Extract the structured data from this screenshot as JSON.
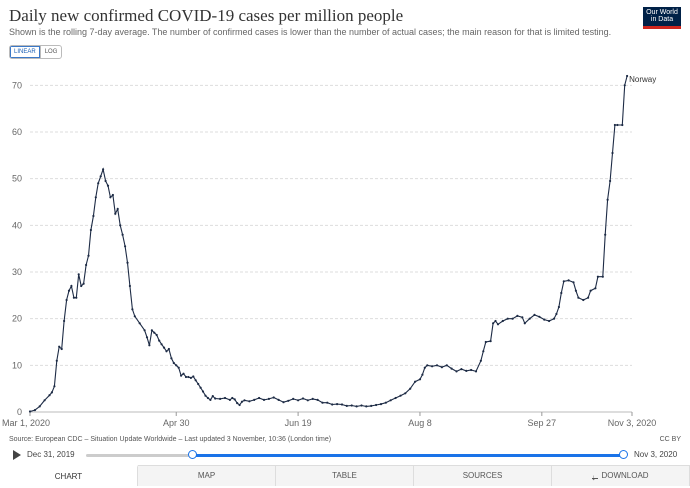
{
  "title": "Daily new confirmed COVID-19 cases per million people",
  "subtitle": "Shown is the rolling 7-day average. The number of confirmed cases is lower than the number of actual cases; the main reason for that is limited testing.",
  "logo": {
    "line1": "Our World",
    "line2": "in Data",
    "bg_color": "#002147",
    "accent_color": "#ce261e"
  },
  "scale_toggle": {
    "linear": "LINEAR",
    "log": "LOG",
    "selected": "linear"
  },
  "source": "Source: European CDC – Situation Update Worldwide – Last updated 3 November, 10:36 (London time)",
  "license": "CC BY",
  "timeline": {
    "start_label": "Dec 31, 2019",
    "end_label": "Nov 3, 2020",
    "play_icon": "play-icon"
  },
  "tabs": [
    {
      "label": "CHART",
      "active": true
    },
    {
      "label": "MAP"
    },
    {
      "label": "TABLE"
    },
    {
      "label": "SOURCES"
    },
    {
      "label": "DOWNLOAD",
      "icon": "download-icon"
    }
  ],
  "chart_data": {
    "type": "line",
    "ylim": [
      0,
      75
    ],
    "y_ticks": [
      0,
      10,
      20,
      30,
      40,
      50,
      60,
      70
    ],
    "x_range": [
      "2020-03-01",
      "2020-11-03"
    ],
    "x_ticks": [
      {
        "date": "2020-03-01",
        "label": "Mar 1, 2020"
      },
      {
        "date": "2020-04-30",
        "label": "Apr 30"
      },
      {
        "date": "2020-06-19",
        "label": "Jun 19"
      },
      {
        "date": "2020-08-08",
        "label": "Aug 8"
      },
      {
        "date": "2020-09-27",
        "label": "Sep 27"
      },
      {
        "date": "2020-11-03",
        "label": "Nov 3, 2020"
      }
    ],
    "grid": "horizontal",
    "line_color": "#1d2b45",
    "series": [
      {
        "name": "Norway",
        "points": [
          [
            "2020-03-01",
            0.1
          ],
          [
            "2020-03-03",
            0.4
          ],
          [
            "2020-03-05",
            1.2
          ],
          [
            "2020-03-07",
            2.5
          ],
          [
            "2020-03-09",
            3.6
          ],
          [
            "2020-03-10",
            4.2
          ],
          [
            "2020-03-11",
            5.5
          ],
          [
            "2020-03-12",
            11
          ],
          [
            "2020-03-13",
            14
          ],
          [
            "2020-03-14",
            13.5
          ],
          [
            "2020-03-15",
            19.5
          ],
          [
            "2020-03-16",
            24
          ],
          [
            "2020-03-17",
            26
          ],
          [
            "2020-03-18",
            27
          ],
          [
            "2020-03-19",
            24.5
          ],
          [
            "2020-03-20",
            24.5
          ],
          [
            "2020-03-21",
            29.5
          ],
          [
            "2020-03-22",
            27
          ],
          [
            "2020-03-23",
            27.5
          ],
          [
            "2020-03-24",
            31.5
          ],
          [
            "2020-03-25",
            33.5
          ],
          [
            "2020-03-26",
            39
          ],
          [
            "2020-03-27",
            42
          ],
          [
            "2020-03-28",
            46
          ],
          [
            "2020-03-29",
            49
          ],
          [
            "2020-03-30",
            50.5
          ],
          [
            "2020-03-31",
            52
          ],
          [
            "2020-04-01",
            49.5
          ],
          [
            "2020-04-02",
            48.5
          ],
          [
            "2020-04-03",
            46
          ],
          [
            "2020-04-04",
            46.5
          ],
          [
            "2020-04-05",
            42.5
          ],
          [
            "2020-04-06",
            43.5
          ],
          [
            "2020-04-07",
            40
          ],
          [
            "2020-04-08",
            38
          ],
          [
            "2020-04-09",
            35.5
          ],
          [
            "2020-04-10",
            32
          ],
          [
            "2020-04-11",
            27
          ],
          [
            "2020-04-12",
            22
          ],
          [
            "2020-04-13",
            20.5
          ],
          [
            "2020-04-15",
            19
          ],
          [
            "2020-04-17",
            17.5
          ],
          [
            "2020-04-18",
            16
          ],
          [
            "2020-04-19",
            14.3
          ],
          [
            "2020-04-20",
            17.5
          ],
          [
            "2020-04-21",
            17
          ],
          [
            "2020-04-22",
            16.5
          ],
          [
            "2020-04-23",
            15.3
          ],
          [
            "2020-04-24",
            14.5
          ],
          [
            "2020-04-25",
            13.8
          ],
          [
            "2020-04-26",
            13
          ],
          [
            "2020-04-27",
            13.5
          ],
          [
            "2020-04-28",
            11.5
          ],
          [
            "2020-04-29",
            10.5
          ],
          [
            "2020-04-30",
            10
          ],
          [
            "2020-05-01",
            9.5
          ],
          [
            "2020-05-02",
            7.8
          ],
          [
            "2020-05-03",
            8.2
          ],
          [
            "2020-05-04",
            7.5
          ],
          [
            "2020-05-05",
            7.5
          ],
          [
            "2020-05-06",
            7.3
          ],
          [
            "2020-05-07",
            7.6
          ],
          [
            "2020-05-08",
            6.8
          ],
          [
            "2020-05-09",
            6
          ],
          [
            "2020-05-10",
            5.2
          ],
          [
            "2020-05-11",
            4.4
          ],
          [
            "2020-05-12",
            3.5
          ],
          [
            "2020-05-13",
            3
          ],
          [
            "2020-05-14",
            2.6
          ],
          [
            "2020-05-15",
            3.4
          ],
          [
            "2020-05-16",
            2.9
          ],
          [
            "2020-05-18",
            2.8
          ],
          [
            "2020-05-20",
            3
          ],
          [
            "2020-05-22",
            2.6
          ],
          [
            "2020-05-23",
            3
          ],
          [
            "2020-05-24",
            2.7
          ],
          [
            "2020-05-25",
            1.9
          ],
          [
            "2020-05-26",
            1.5
          ],
          [
            "2020-05-27",
            2.2
          ],
          [
            "2020-05-28",
            2.5
          ],
          [
            "2020-05-30",
            2.3
          ],
          [
            "2020-06-01",
            2.6
          ],
          [
            "2020-06-03",
            3
          ],
          [
            "2020-06-05",
            2.6
          ],
          [
            "2020-06-07",
            2.8
          ],
          [
            "2020-06-09",
            3.1
          ],
          [
            "2020-06-11",
            2.6
          ],
          [
            "2020-06-13",
            2.1
          ],
          [
            "2020-06-15",
            2.4
          ],
          [
            "2020-06-17",
            2.8
          ],
          [
            "2020-06-19",
            2.5
          ],
          [
            "2020-06-21",
            2.9
          ],
          [
            "2020-06-23",
            2.5
          ],
          [
            "2020-06-25",
            2.8
          ],
          [
            "2020-06-27",
            2.6
          ],
          [
            "2020-06-29",
            2
          ],
          [
            "2020-07-01",
            2
          ],
          [
            "2020-07-03",
            1.6
          ],
          [
            "2020-07-05",
            1.7
          ],
          [
            "2020-07-07",
            1.6
          ],
          [
            "2020-07-09",
            1.3
          ],
          [
            "2020-07-11",
            1.4
          ],
          [
            "2020-07-13",
            1.2
          ],
          [
            "2020-07-15",
            1.4
          ],
          [
            "2020-07-17",
            1.2
          ],
          [
            "2020-07-19",
            1.3
          ],
          [
            "2020-07-21",
            1.5
          ],
          [
            "2020-07-23",
            1.7
          ],
          [
            "2020-07-25",
            2
          ],
          [
            "2020-07-27",
            2.5
          ],
          [
            "2020-07-29",
            3
          ],
          [
            "2020-07-31",
            3.5
          ],
          [
            "2020-08-02",
            4
          ],
          [
            "2020-08-04",
            5
          ],
          [
            "2020-08-06",
            6.5
          ],
          [
            "2020-08-08",
            7
          ],
          [
            "2020-08-09",
            8
          ],
          [
            "2020-08-10",
            9.5
          ],
          [
            "2020-08-11",
            10
          ],
          [
            "2020-08-13",
            9.8
          ],
          [
            "2020-08-15",
            10
          ],
          [
            "2020-08-17",
            9.6
          ],
          [
            "2020-08-19",
            10
          ],
          [
            "2020-08-21",
            9.3
          ],
          [
            "2020-08-23",
            8.7
          ],
          [
            "2020-08-25",
            9.2
          ],
          [
            "2020-08-27",
            8.8
          ],
          [
            "2020-08-29",
            9
          ],
          [
            "2020-08-31",
            8.7
          ],
          [
            "2020-09-02",
            11
          ],
          [
            "2020-09-03",
            13
          ],
          [
            "2020-09-04",
            15
          ],
          [
            "2020-09-06",
            15.2
          ],
          [
            "2020-09-07",
            19
          ],
          [
            "2020-09-08",
            19.5
          ],
          [
            "2020-09-09",
            18.8
          ],
          [
            "2020-09-11",
            19.5
          ],
          [
            "2020-09-13",
            20
          ],
          [
            "2020-09-15",
            20
          ],
          [
            "2020-09-17",
            20.6
          ],
          [
            "2020-09-19",
            20.3
          ],
          [
            "2020-09-20",
            19
          ],
          [
            "2020-09-22",
            20
          ],
          [
            "2020-09-24",
            20.8
          ],
          [
            "2020-09-26",
            20.4
          ],
          [
            "2020-09-28",
            19.8
          ],
          [
            "2020-09-30",
            19.5
          ],
          [
            "2020-10-02",
            20
          ],
          [
            "2020-10-03",
            21
          ],
          [
            "2020-10-04",
            22.5
          ],
          [
            "2020-10-05",
            25.5
          ],
          [
            "2020-10-06",
            28
          ],
          [
            "2020-10-08",
            28.2
          ],
          [
            "2020-10-10",
            27.8
          ],
          [
            "2020-10-11",
            26
          ],
          [
            "2020-10-12",
            24.5
          ],
          [
            "2020-10-14",
            24
          ],
          [
            "2020-10-16",
            24.5
          ],
          [
            "2020-10-17",
            26
          ],
          [
            "2020-10-19",
            26.5
          ],
          [
            "2020-10-20",
            29
          ],
          [
            "2020-10-22",
            29
          ],
          [
            "2020-10-23",
            38
          ],
          [
            "2020-10-24",
            45.5
          ],
          [
            "2020-10-25",
            49.5
          ],
          [
            "2020-10-26",
            55.5
          ],
          [
            "2020-10-27",
            61.5
          ],
          [
            "2020-10-28",
            61.5
          ],
          [
            "2020-10-30",
            61.5
          ],
          [
            "2020-10-31",
            70
          ],
          [
            "2020-11-01",
            72
          ]
        ]
      }
    ]
  }
}
